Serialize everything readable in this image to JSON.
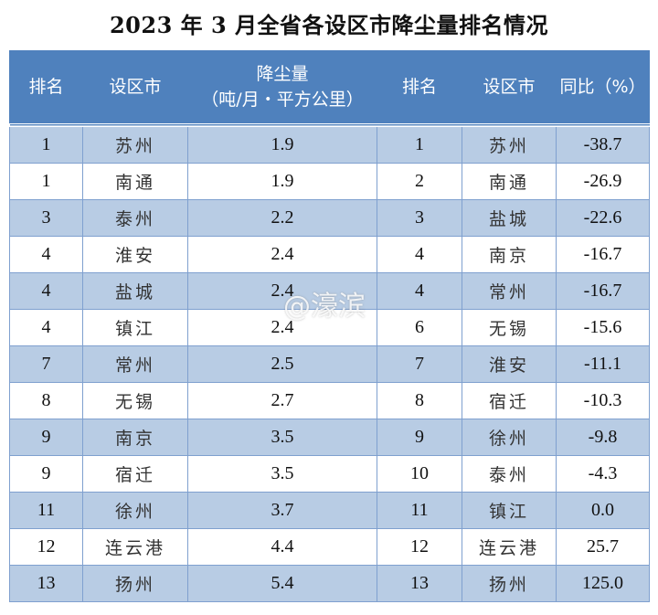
{
  "title": "2023 年 3 月全省各设区市降尘量排名情况",
  "header": {
    "rank_a": "排名",
    "city_a": "设区市",
    "dust_line1": "降尘量",
    "dust_line2": "（吨/月・平方公里）",
    "rank_b": "排名",
    "city_b": "设区市",
    "yoy": "同比（%）"
  },
  "rows": [
    {
      "rank_a": "1",
      "city_a": "苏州",
      "dust": "1.9",
      "rank_b": "1",
      "city_b": "苏州",
      "yoy": "-38.7"
    },
    {
      "rank_a": "1",
      "city_a": "南通",
      "dust": "1.9",
      "rank_b": "2",
      "city_b": "南通",
      "yoy": "-26.9"
    },
    {
      "rank_a": "3",
      "city_a": "泰州",
      "dust": "2.2",
      "rank_b": "3",
      "city_b": "盐城",
      "yoy": "-22.6"
    },
    {
      "rank_a": "4",
      "city_a": "淮安",
      "dust": "2.4",
      "rank_b": "4",
      "city_b": "南京",
      "yoy": "-16.7"
    },
    {
      "rank_a": "4",
      "city_a": "盐城",
      "dust": "2.4",
      "rank_b": "4",
      "city_b": "常州",
      "yoy": "-16.7"
    },
    {
      "rank_a": "4",
      "city_a": "镇江",
      "dust": "2.4",
      "rank_b": "6",
      "city_b": "无锡",
      "yoy": "-15.6"
    },
    {
      "rank_a": "7",
      "city_a": "常州",
      "dust": "2.5",
      "rank_b": "7",
      "city_b": "淮安",
      "yoy": "-11.1"
    },
    {
      "rank_a": "8",
      "city_a": "无锡",
      "dust": "2.7",
      "rank_b": "8",
      "city_b": "宿迁",
      "yoy": "-10.3"
    },
    {
      "rank_a": "9",
      "city_a": "南京",
      "dust": "3.5",
      "rank_b": "9",
      "city_b": "徐州",
      "yoy": "-9.8"
    },
    {
      "rank_a": "9",
      "city_a": "宿迁",
      "dust": "3.5",
      "rank_b": "10",
      "city_b": "泰州",
      "yoy": "-4.3"
    },
    {
      "rank_a": "11",
      "city_a": "徐州",
      "dust": "3.7",
      "rank_b": "11",
      "city_b": "镇江",
      "yoy": "0.0"
    },
    {
      "rank_a": "12",
      "city_a": "连云港",
      "dust": "4.4",
      "rank_b": "12",
      "city_b": "连云港",
      "yoy": "25.7"
    },
    {
      "rank_a": "13",
      "city_a": "扬州",
      "dust": "5.4",
      "rank_b": "13",
      "city_b": "扬州",
      "yoy": "125.0"
    }
  ],
  "watermark": "@濠滨",
  "colors": {
    "header_bg": "#4f81bd",
    "band_bg": "#b8cce4",
    "border": "#7fa0cf"
  }
}
